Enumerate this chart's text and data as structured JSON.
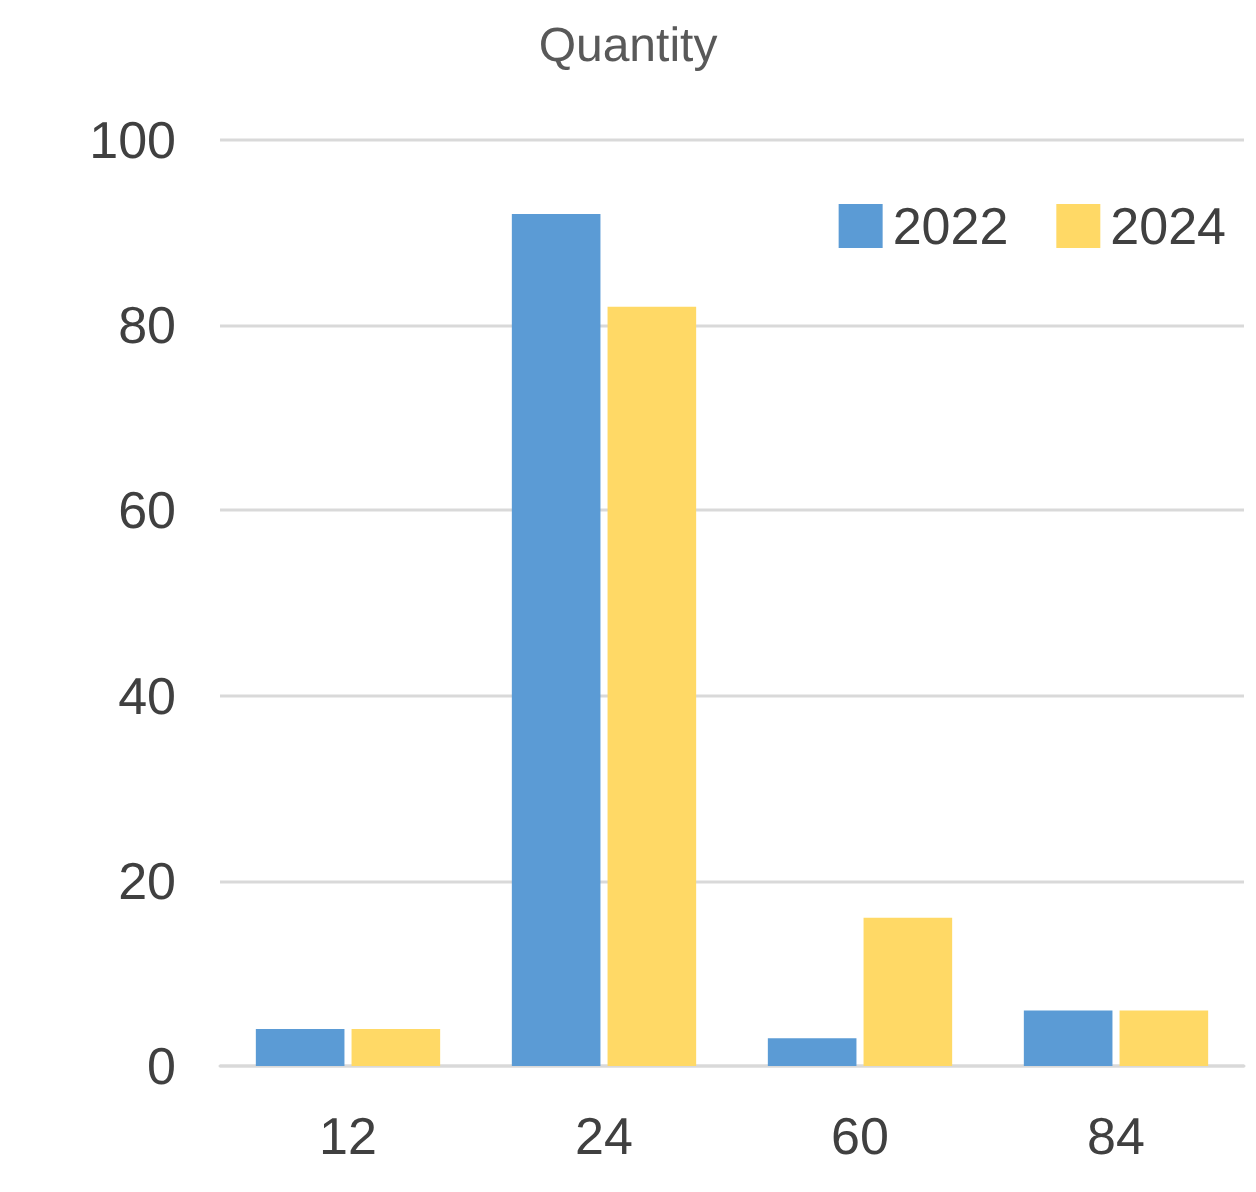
{
  "chart_data": {
    "type": "bar",
    "title": "Quantity",
    "categories": [
      "12",
      "24",
      "60",
      "84"
    ],
    "series": [
      {
        "name": "2022",
        "color": "#5b9bd5",
        "values": [
          4,
          92,
          3,
          6
        ]
      },
      {
        "name": "2024",
        "color": "#ffd966",
        "values": [
          4,
          82,
          16,
          6
        ]
      }
    ],
    "ylim": [
      0,
      100
    ],
    "yticks": [
      0,
      20,
      40,
      60,
      80,
      100
    ],
    "grid": "y",
    "legend": "top right"
  }
}
